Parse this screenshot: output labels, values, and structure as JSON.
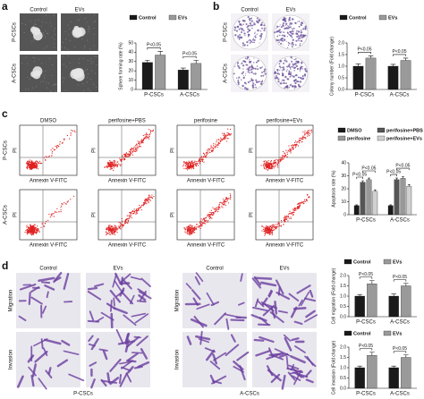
{
  "panels": {
    "a": {
      "label": "a",
      "columns": [
        "Control",
        "EVs"
      ],
      "rows": [
        "P-CSCs",
        "A-CSCs"
      ]
    },
    "b": {
      "label": "b",
      "columns": [
        "Control",
        "EVs"
      ],
      "rows": [
        "P-CSCs",
        "A-CSCs"
      ]
    },
    "c": {
      "label": "c",
      "columns": [
        "DMSO",
        "perifosine+PBS",
        "perifosine",
        "perifosine+EVs"
      ],
      "rows": [
        "P-CSCs",
        "A-CSCs"
      ],
      "xlabel": "Annexin V-FITC",
      "ylabel": "PI"
    },
    "d": {
      "label": "d",
      "columns": [
        "Control",
        "EVs",
        "Control",
        "EVs"
      ],
      "rows": [
        "Migration",
        "Invasion"
      ],
      "groups": [
        "P-CSCs",
        "A-CSCs"
      ]
    }
  },
  "chart_data": [
    {
      "type": "bar",
      "ylabel": "Sphere forming rate (%)",
      "categories": [
        "P-CSCs",
        "A-CSCs"
      ],
      "series": [
        {
          "name": "Control",
          "color": "#1a1a1a",
          "values": [
            29,
            21
          ],
          "errors": [
            2.5,
            2
          ]
        },
        {
          "name": "EVs",
          "color": "#9a9a9a",
          "values": [
            37,
            28
          ],
          "errors": [
            4,
            3.5
          ]
        }
      ],
      "ylim": [
        0,
        50
      ],
      "yticks": [
        0,
        10,
        20,
        30,
        40,
        50
      ],
      "annotations": [
        "P<0.05",
        "P<0.05"
      ]
    },
    {
      "type": "bar",
      "ylabel": "Colony number (Fold change)",
      "categories": [
        "P-CSCs",
        "A-CSCs"
      ],
      "series": [
        {
          "name": "Control",
          "color": "#1a1a1a",
          "values": [
            1.0,
            1.0
          ],
          "errors": [
            0.1,
            0.08
          ]
        },
        {
          "name": "EVs",
          "color": "#9a9a9a",
          "values": [
            1.35,
            1.25
          ],
          "errors": [
            0.1,
            0.1
          ]
        }
      ],
      "ylim": [
        0,
        2
      ],
      "yticks": [
        {
          "value": 0,
          "label": "0.0"
        },
        0.5,
        {
          "value": 1,
          "label": "1.0"
        },
        1.5,
        {
          "value": 2,
          "label": "2.0"
        }
      ],
      "annotations": [
        "P<0.05",
        "P<0.05"
      ]
    },
    {
      "type": "bar",
      "ylabel": "Apoptosis rate (%)",
      "categories": [
        "P-CSCs",
        "A-CSCs"
      ],
      "series": [
        {
          "name": "DMSO",
          "color": "#1a1a1a",
          "values": [
            7,
            7
          ],
          "errors": [
            0.6,
            0.6
          ]
        },
        {
          "name": "perifosine+PBS",
          "color": "#555555",
          "values": [
            25,
            27
          ],
          "errors": [
            1.2,
            1.2
          ]
        },
        {
          "name": "perifosine",
          "color": "#999999",
          "values": [
            27,
            28
          ],
          "errors": [
            1.2,
            1.2
          ]
        },
        {
          "name": "perifosine+EVs",
          "color": "#d0d0d0",
          "values": [
            18,
            22
          ],
          "errors": [
            1.2,
            1.2
          ]
        }
      ],
      "ylim": [
        0,
        40
      ],
      "yticks": [
        0,
        10,
        20,
        30,
        40
      ],
      "annotations": [
        "P<0.05",
        "P<0.05",
        "P<0.05",
        "P<0.05"
      ]
    },
    {
      "type": "bar",
      "ylabel": "Cell migration (Fold change)",
      "categories": [
        "P-CSCs",
        "A-CSCs"
      ],
      "series": [
        {
          "name": "Control",
          "color": "#1a1a1a",
          "values": [
            1.0,
            1.0
          ],
          "errors": [
            0.08,
            0.1
          ]
        },
        {
          "name": "EVs",
          "color": "#9a9a9a",
          "values": [
            1.6,
            1.5
          ],
          "errors": [
            0.15,
            0.12
          ]
        }
      ],
      "ylim": [
        0,
        2
      ],
      "yticks": [
        {
          "value": 0,
          "label": "0.0"
        },
        0.5,
        {
          "value": 1,
          "label": "1.0"
        },
        1.5,
        {
          "value": 2,
          "label": "2.0"
        }
      ],
      "annotations": [
        "P<0.05",
        "P<0.05"
      ]
    },
    {
      "type": "bar",
      "ylabel": "Cell invasion (Fold change)",
      "categories": [
        "P-CSCs",
        "A-CSCs"
      ],
      "series": [
        {
          "name": "Control",
          "color": "#1a1a1a",
          "values": [
            1.0,
            1.0
          ],
          "errors": [
            0.08,
            0.08
          ]
        },
        {
          "name": "EVs",
          "color": "#9a9a9a",
          "values": [
            1.6,
            1.5
          ],
          "errors": [
            0.15,
            0.12
          ]
        }
      ],
      "ylim": [
        0,
        2
      ],
      "yticks": [
        {
          "value": 0,
          "label": "0.0"
        },
        0.5,
        {
          "value": 1,
          "label": "1.0"
        },
        1.5,
        {
          "value": 2,
          "label": "2.0"
        }
      ],
      "annotations": [
        "P<0.05",
        "P<0.05"
      ]
    }
  ]
}
